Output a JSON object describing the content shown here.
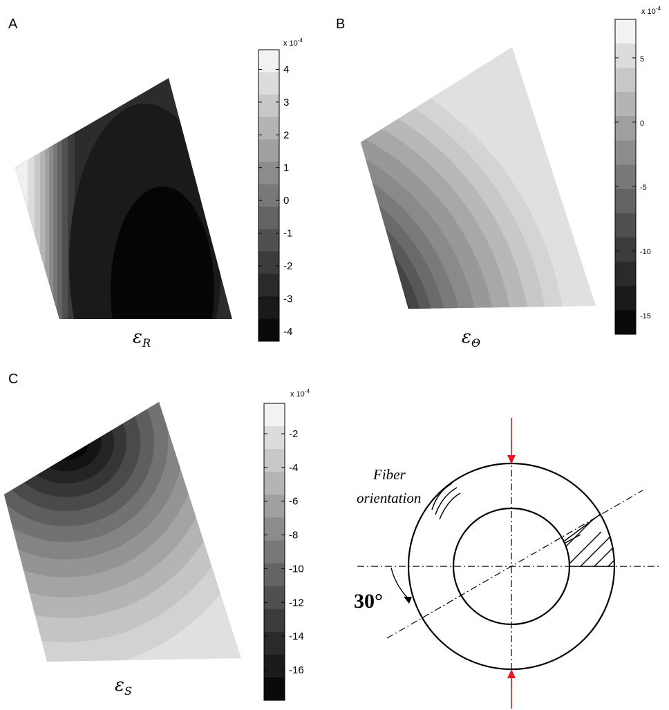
{
  "panels": {
    "a": {
      "label": "A",
      "field_symbol": "ε",
      "field_subscript": "R",
      "colorbar": {
        "multiplier_base": "x 10",
        "multiplier_exp": "-4",
        "ticks": [
          "4",
          "3",
          "2",
          "1",
          "0",
          "-1",
          "-2",
          "-3",
          "-4"
        ],
        "levels": [
          "#f2f2f2",
          "#dcdcdc",
          "#c8c8c8",
          "#b4b4b4",
          "#a0a0a0",
          "#8c8c8c",
          "#787878",
          "#646464",
          "#505050",
          "#3c3c3c",
          "#2a2a2a",
          "#1a1a1a",
          "#0a0a0a"
        ],
        "range": [
          -4.3,
          4.6
        ]
      }
    },
    "b": {
      "label": "B",
      "field_symbol": "ε",
      "field_subscript": "Θ",
      "colorbar": {
        "multiplier_base": "x 10",
        "multiplier_exp": "-4",
        "ticks": [
          "5",
          "0",
          "-5",
          "-10",
          "-15"
        ],
        "levels": [
          "#f2f2f2",
          "#dcdcdc",
          "#c8c8c8",
          "#b4b4b4",
          "#a0a0a0",
          "#8c8c8c",
          "#787878",
          "#646464",
          "#505050",
          "#3c3c3c",
          "#2a2a2a",
          "#1a1a1a",
          "#0a0a0a"
        ],
        "range": [
          -16.5,
          8
        ]
      }
    },
    "c": {
      "label": "C",
      "field_symbol": "ε",
      "field_subscript": "S",
      "colorbar": {
        "multiplier_base": "x 10",
        "multiplier_exp": "-4",
        "ticks": [
          "-2",
          "-4",
          "-6",
          "-8",
          "-10",
          "-12",
          "-14",
          "-16"
        ],
        "levels": [
          "#f2f2f2",
          "#dcdcdc",
          "#c8c8c8",
          "#b4b4b4",
          "#a0a0a0",
          "#8c8c8c",
          "#787878",
          "#646464",
          "#505050",
          "#3c3c3c",
          "#2a2a2a",
          "#1a1a1a",
          "#0a0a0a"
        ],
        "range": [
          -17.8,
          -0.2
        ]
      }
    }
  },
  "schematic": {
    "fiber_text_line1": "Fiber",
    "fiber_text_line2": "orientation",
    "angle_text": "30°",
    "load_color": "#e8141e"
  }
}
